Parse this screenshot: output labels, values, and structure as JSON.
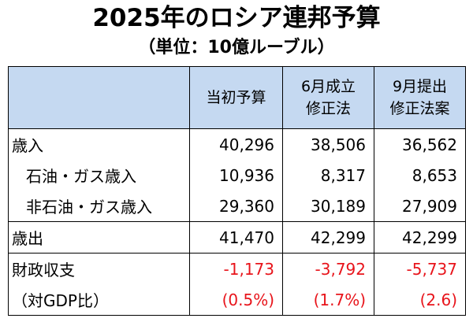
{
  "title": "2025年のロシア連邦予算",
  "subtitle": "（単位：10億ルーブル）",
  "columns": [
    {
      "line1": "",
      "line2": ""
    },
    {
      "line1": "当初予算",
      "line2": ""
    },
    {
      "line1": "6月成立",
      "line2": "修正法"
    },
    {
      "line1": "9月提出",
      "line2": "修正法案"
    }
  ],
  "rows": [
    {
      "label": "歳入",
      "v1": "40,296",
      "v2": "38,506",
      "v3": "36,562"
    },
    {
      "label": "石油・ガス歳入",
      "v1": "10,936",
      "v2": "8,317",
      "v3": "8,653"
    },
    {
      "label": "非石油・ガス歳入",
      "v1": "29,360",
      "v2": "30,189",
      "v3": "27,909"
    },
    {
      "label": "歳出",
      "v1": "41,470",
      "v2": "42,299",
      "v3": "42,299"
    },
    {
      "label": "財政収支",
      "v1": "-1,173",
      "v2": "-3,792",
      "v3": "-5,737"
    },
    {
      "label": "（対GDP比）",
      "v1": "(0.5%)",
      "v2": "(1.7%)",
      "v3": "(2.6)"
    }
  ],
  "colors": {
    "header_bg": "#c5d9f1",
    "negative": "#e8141b"
  }
}
